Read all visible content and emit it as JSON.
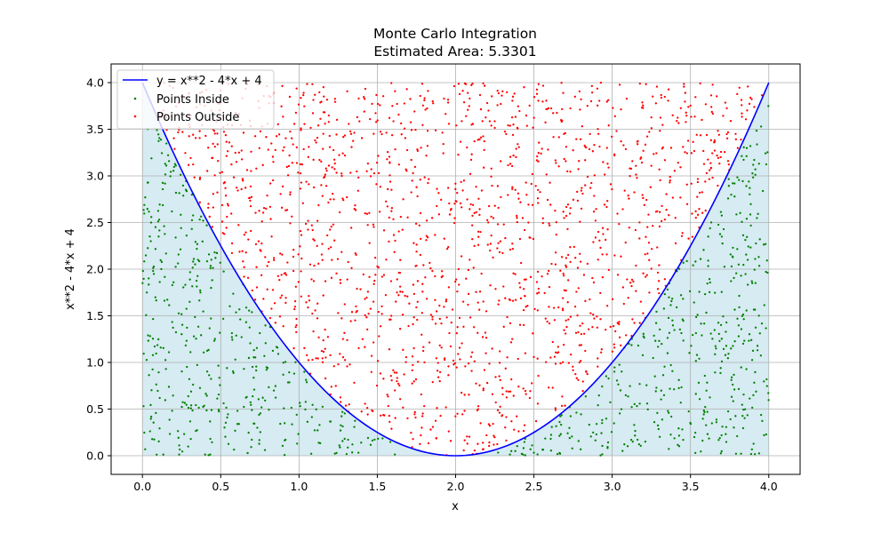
{
  "chart_data": {
    "type": "scatter",
    "title": "Monte Carlo Integration",
    "subtitle": "Estimated Area: 5.3301",
    "xlabel": "x",
    "ylabel": "x**2 - 4*x + 4",
    "xlim": [
      -0.2,
      4.2
    ],
    "ylim": [
      -0.2,
      4.2
    ],
    "x_ticks": [
      "0.0",
      "0.5",
      "1.0",
      "1.5",
      "2.0",
      "2.5",
      "3.0",
      "3.5",
      "4.0"
    ],
    "y_ticks": [
      "0.0",
      "0.5",
      "1.0",
      "1.5",
      "2.0",
      "2.5",
      "3.0",
      "3.5",
      "4.0"
    ],
    "grid": true,
    "legend": "top-left",
    "curve": {
      "name": "y = x**2 - 4*x + 4",
      "expression": "x**2 - 4*x + 4",
      "x_range": [
        0,
        4
      ],
      "color": "#0000ff"
    },
    "fill_region": {
      "x_range": [
        0,
        4
      ],
      "color": "#add8e6"
    },
    "sample_region": {
      "x_range": [
        0,
        4
      ],
      "y_range": [
        0,
        4
      ]
    },
    "series": [
      {
        "name": "Points Inside",
        "color": "#008000",
        "approx_count": 1330
      },
      {
        "name": "Points Outside",
        "color": "#ff0000",
        "approx_count": 1170
      }
    ],
    "estimated_area": 5.3301
  }
}
